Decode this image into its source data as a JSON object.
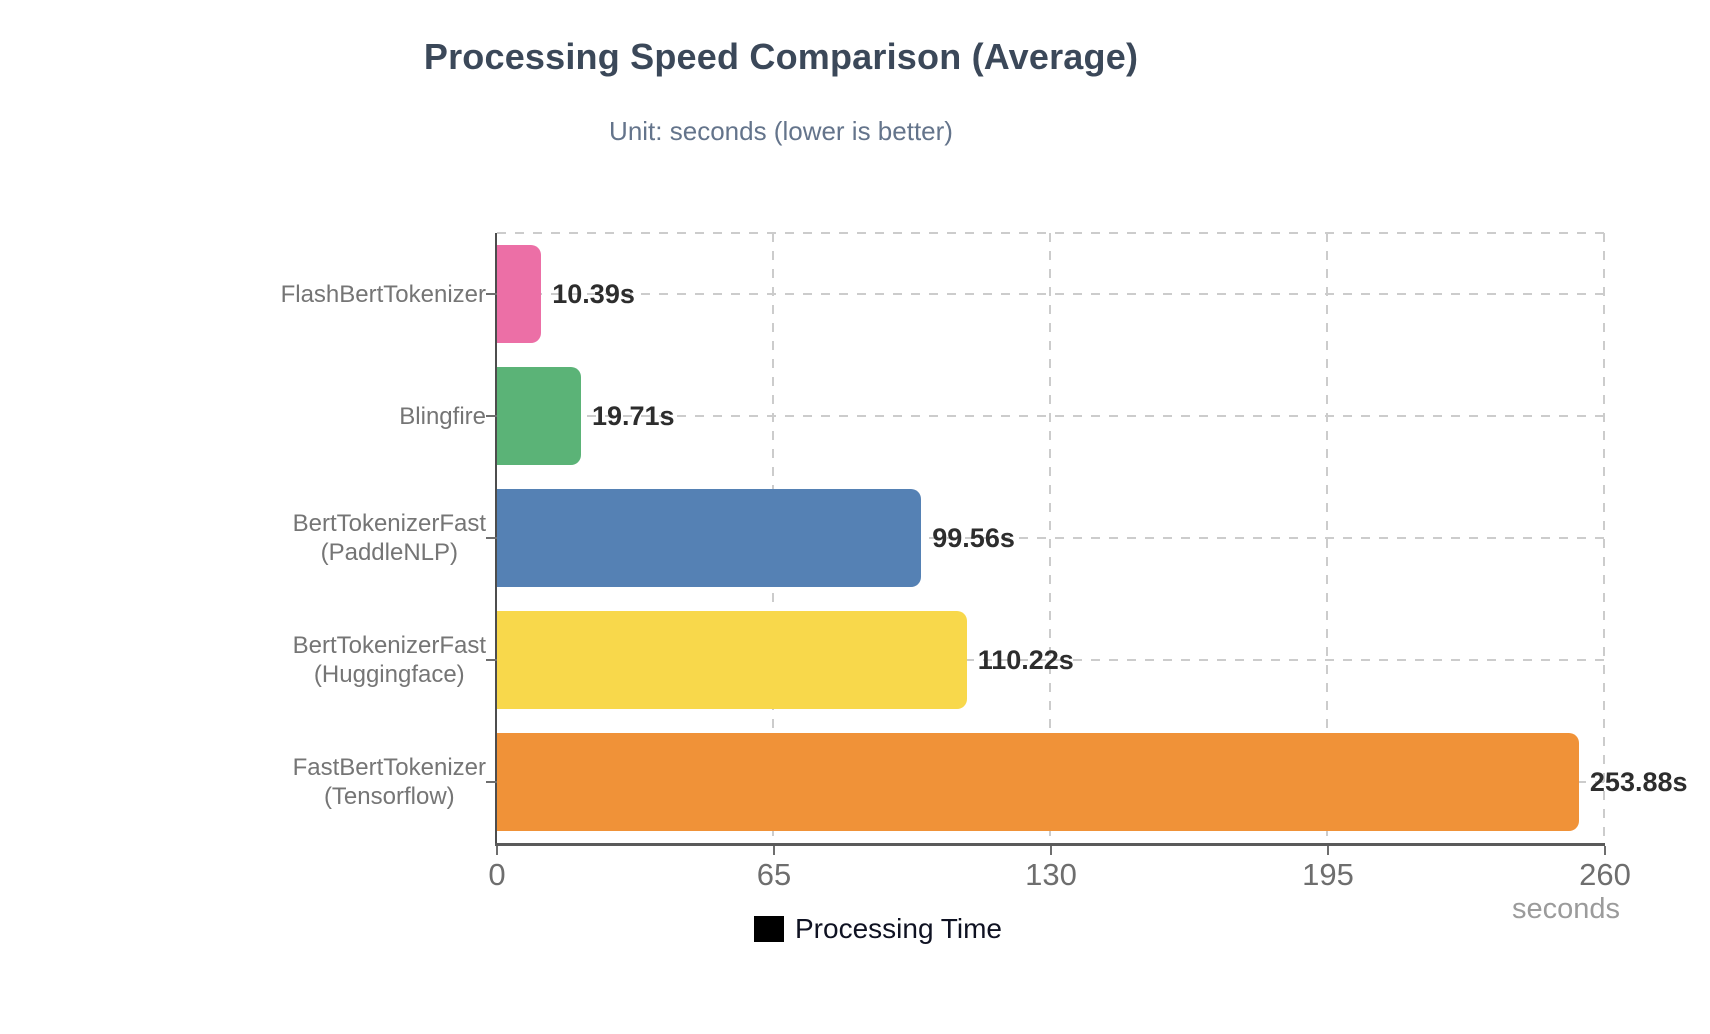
{
  "chart": {
    "title": "Processing Speed Comparison (Average)",
    "subtitle": "Unit: seconds (lower is better)",
    "unit_label": "seconds",
    "legend": {
      "label": "Processing Time",
      "marker_color": "#000000"
    }
  },
  "chart_data": {
    "type": "bar",
    "orientation": "horizontal",
    "title": "Processing Speed Comparison (Average)",
    "subtitle": "Unit: seconds (lower is better)",
    "categories": [
      "FlashBertTokenizer",
      "Blingfire",
      "BertTokenizerFast (PaddleNLP)",
      "BertTokenizerFast (Huggingface)",
      "FastBertTokenizer (Tensorflow)"
    ],
    "category_display_lines": [
      [
        "FlashBertTokenizer"
      ],
      [
        "Blingfire"
      ],
      [
        "BertTokenizerFast",
        "(PaddleNLP)"
      ],
      [
        "BertTokenizerFast",
        "(Huggingface)"
      ],
      [
        "FastBertTokenizer",
        "(Tensorflow)"
      ]
    ],
    "series": [
      {
        "name": "Processing Time",
        "values": [
          10.39,
          19.71,
          99.56,
          110.22,
          253.88
        ]
      }
    ],
    "value_labels": [
      "10.39s",
      "19.71s",
      "99.56s",
      "110.22s",
      "253.88s"
    ],
    "bar_colors": [
      "#ec6fa6",
      "#5bb377",
      "#5581b4",
      "#f8d84b",
      "#f09238"
    ],
    "xlabel": "seconds",
    "xlim": [
      0,
      260
    ],
    "x_ticks": [
      0,
      65,
      130,
      195,
      260
    ],
    "grid": "dashed",
    "legend_position": "bottom",
    "note": "lower is better"
  }
}
